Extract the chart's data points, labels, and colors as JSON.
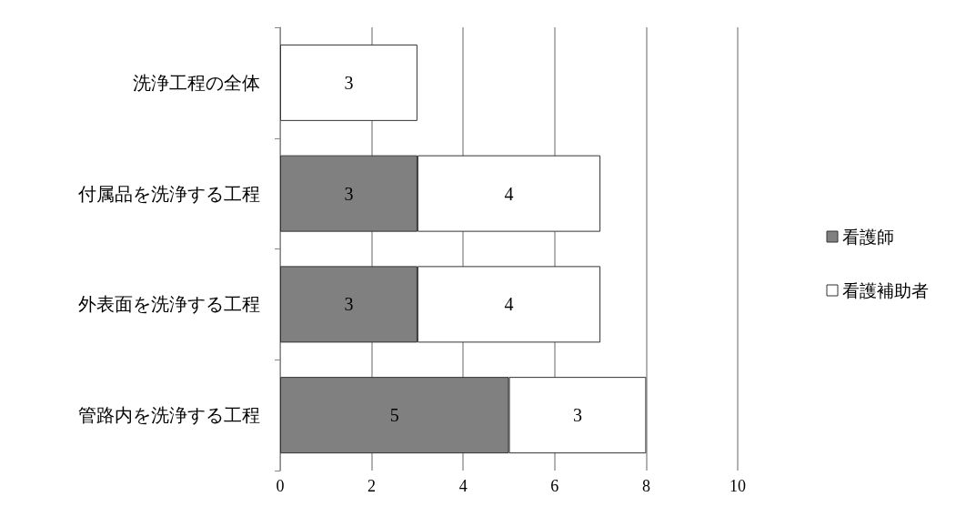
{
  "chart_data": {
    "type": "bar",
    "orientation": "horizontal",
    "stacked": true,
    "categories": [
      "洗浄工程の全体",
      "付属品を洗浄する工程",
      "外表面を洗浄する工程",
      "管路内を洗浄する工程"
    ],
    "series": [
      {
        "name": "看護師",
        "color": "#808080",
        "values": [
          null,
          3,
          3,
          5
        ]
      },
      {
        "name": "看護補助者",
        "color": "#ffffff",
        "values": [
          3,
          4,
          4,
          3
        ]
      }
    ],
    "xlim": [
      0,
      10
    ],
    "xticks": [
      0,
      2,
      4,
      6,
      8,
      10
    ],
    "grid": "x",
    "legend": "right",
    "data_labels": true
  }
}
